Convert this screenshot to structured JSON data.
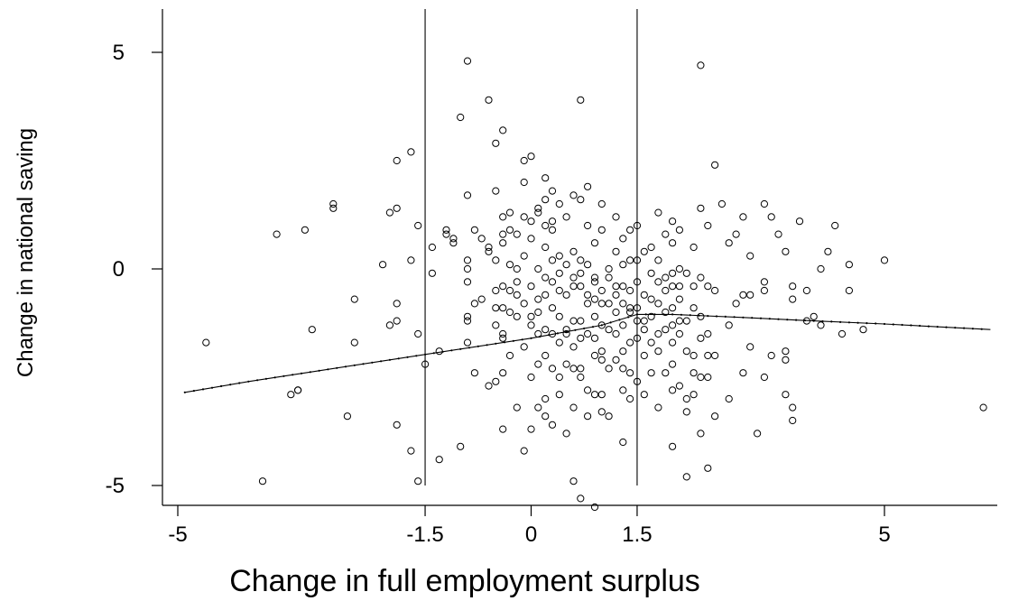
{
  "chart_data": {
    "type": "scatter",
    "title": "",
    "xlabel": "Change in full employment surplus",
    "ylabel": "Change in national saving",
    "xlim": [
      -5.1,
      6.6
    ],
    "ylim": [
      -5.3,
      6.0
    ],
    "x_ticks": [
      -5,
      -1.5,
      0,
      1.5,
      5
    ],
    "x_tick_labels": [
      "-5",
      "-1.5",
      "0",
      "1.5",
      "5"
    ],
    "y_ticks": [
      -5,
      0,
      5
    ],
    "y_tick_labels": [
      "-5",
      "0",
      "5"
    ],
    "grid": false,
    "legend": "none",
    "vertical_reference_lines": [
      -1.5,
      1.5
    ],
    "points": [
      [
        -4.6,
        -1.7
      ],
      [
        -3.6,
        0.8
      ],
      [
        -3.8,
        -4.9
      ],
      [
        -3.4,
        -2.9
      ],
      [
        -3.3,
        -2.8
      ],
      [
        -3.3,
        -2.8
      ],
      [
        -3.2,
        0.9
      ],
      [
        -3.1,
        -1.4
      ],
      [
        -2.8,
        1.5
      ],
      [
        -2.8,
        1.4
      ],
      [
        -2.6,
        -3.4
      ],
      [
        -2.5,
        -0.7
      ],
      [
        -2.5,
        -1.7
      ],
      [
        -2.1,
        0.1
      ],
      [
        -2.0,
        1.3
      ],
      [
        -2.0,
        -1.3
      ],
      [
        -1.9,
        2.5
      ],
      [
        -1.9,
        1.4
      ],
      [
        -1.9,
        -0.8
      ],
      [
        -1.9,
        -1.2
      ],
      [
        -1.9,
        -3.6
      ],
      [
        -1.7,
        2.7
      ],
      [
        -1.7,
        0.2
      ],
      [
        -1.7,
        -4.2
      ],
      [
        -1.6,
        -1.5
      ],
      [
        -1.6,
        1.0
      ],
      [
        -1.6,
        -4.9
      ],
      [
        -1.5,
        -2.2
      ],
      [
        -1.4,
        0.5
      ],
      [
        -1.4,
        -0.1
      ],
      [
        -1.3,
        -1.9
      ],
      [
        -1.3,
        -4.4
      ],
      [
        -1.2,
        0.8
      ],
      [
        -1.2,
        0.9
      ],
      [
        -1.1,
        0.6
      ],
      [
        -1.1,
        0.7
      ],
      [
        -1.0,
        3.5
      ],
      [
        -1.0,
        -4.1
      ],
      [
        -0.9,
        4.8
      ],
      [
        -0.9,
        1.7
      ],
      [
        -0.9,
        0.2
      ],
      [
        -0.9,
        0.0
      ],
      [
        -0.9,
        -0.3
      ],
      [
        -0.9,
        -1.1
      ],
      [
        -0.9,
        -1.2
      ],
      [
        -0.9,
        -1.7
      ],
      [
        -0.8,
        0.9
      ],
      [
        -0.8,
        -0.8
      ],
      [
        -0.8,
        -2.4
      ],
      [
        -0.7,
        0.7
      ],
      [
        -0.7,
        -0.7
      ],
      [
        -0.6,
        3.9
      ],
      [
        -0.6,
        0.5
      ],
      [
        -0.6,
        0.4
      ],
      [
        -0.6,
        -2.7
      ],
      [
        -0.5,
        2.9
      ],
      [
        -0.5,
        1.8
      ],
      [
        -0.5,
        0.2
      ],
      [
        -0.5,
        -0.5
      ],
      [
        -0.5,
        -0.9
      ],
      [
        -0.5,
        -2.6
      ],
      [
        -0.4,
        3.2
      ],
      [
        -0.4,
        1.2
      ],
      [
        -0.4,
        0.8
      ],
      [
        -0.4,
        0.6
      ],
      [
        -0.4,
        -0.4
      ],
      [
        -0.4,
        -1.5
      ],
      [
        -0.4,
        -1.6
      ],
      [
        -0.4,
        -2.4
      ],
      [
        -0.4,
        -3.7
      ],
      [
        -0.3,
        1.3
      ],
      [
        -0.3,
        0.1
      ],
      [
        -0.3,
        -0.5
      ],
      [
        -0.3,
        -1.0
      ],
      [
        -0.3,
        -2.0
      ],
      [
        -0.2,
        0.8
      ],
      [
        -0.2,
        -0.3
      ],
      [
        -0.2,
        -0.6
      ],
      [
        -0.2,
        -1.1
      ],
      [
        -0.2,
        -3.2
      ],
      [
        -0.1,
        2.5
      ],
      [
        -0.1,
        1.2
      ],
      [
        -0.1,
        0.3
      ],
      [
        -0.1,
        -0.8
      ],
      [
        -0.1,
        -1.8
      ],
      [
        -0.1,
        -4.2
      ],
      [
        0.0,
        2.6
      ],
      [
        0.0,
        1.1
      ],
      [
        0.0,
        0.7
      ],
      [
        0.0,
        -0.4
      ],
      [
        0.0,
        -1.3
      ],
      [
        0.0,
        -2.5
      ],
      [
        0.0,
        -3.7
      ],
      [
        0.1,
        1.4
      ],
      [
        0.1,
        1.3
      ],
      [
        0.1,
        0.0
      ],
      [
        0.1,
        -0.7
      ],
      [
        0.1,
        -1.0
      ],
      [
        0.1,
        -2.2
      ],
      [
        0.1,
        -3.2
      ],
      [
        0.2,
        2.1
      ],
      [
        0.2,
        1.6
      ],
      [
        0.2,
        1.0
      ],
      [
        0.2,
        0.5
      ],
      [
        0.2,
        -0.2
      ],
      [
        0.2,
        -0.6
      ],
      [
        0.2,
        -1.4
      ],
      [
        0.2,
        -2.0
      ],
      [
        0.2,
        -3.0
      ],
      [
        0.3,
        1.8
      ],
      [
        0.3,
        1.1
      ],
      [
        0.3,
        0.9
      ],
      [
        0.3,
        0.2
      ],
      [
        0.3,
        -0.3
      ],
      [
        0.3,
        -0.9
      ],
      [
        0.3,
        -1.5
      ],
      [
        0.3,
        -2.3
      ],
      [
        0.3,
        -3.6
      ],
      [
        0.4,
        1.5
      ],
      [
        0.4,
        0.3
      ],
      [
        0.4,
        -0.1
      ],
      [
        0.4,
        -0.5
      ],
      [
        0.4,
        -1.1
      ],
      [
        0.4,
        -1.7
      ],
      [
        0.4,
        -2.5
      ],
      [
        0.4,
        -2.9
      ],
      [
        0.5,
        1.2
      ],
      [
        0.5,
        0.1
      ],
      [
        0.5,
        -0.6
      ],
      [
        0.5,
        -1.4
      ],
      [
        0.5,
        -1.5
      ],
      [
        0.5,
        -2.2
      ],
      [
        0.5,
        -3.8
      ],
      [
        0.6,
        1.7
      ],
      [
        0.6,
        0.4
      ],
      [
        0.6,
        -0.2
      ],
      [
        0.6,
        -0.4
      ],
      [
        0.6,
        -1.2
      ],
      [
        0.6,
        -1.8
      ],
      [
        0.6,
        -2.3
      ],
      [
        0.6,
        -3.2
      ],
      [
        0.6,
        -4.9
      ],
      [
        0.7,
        3.9
      ],
      [
        0.7,
        1.6
      ],
      [
        0.7,
        0.2
      ],
      [
        0.7,
        -0.1
      ],
      [
        0.7,
        -0.4
      ],
      [
        0.7,
        -1.2
      ],
      [
        0.7,
        -1.6
      ],
      [
        0.7,
        -2.3
      ],
      [
        0.7,
        -2.5
      ],
      [
        0.7,
        -5.3
      ],
      [
        0.8,
        1.9
      ],
      [
        0.8,
        0.1
      ],
      [
        0.8,
        -0.6
      ],
      [
        0.8,
        -0.8
      ],
      [
        0.8,
        -1.5
      ],
      [
        0.8,
        -2.8
      ],
      [
        0.8,
        -3.4
      ],
      [
        0.9,
        0.6
      ],
      [
        0.9,
        -0.2
      ],
      [
        0.9,
        -0.3
      ],
      [
        0.9,
        -0.7
      ],
      [
        0.9,
        -1.1
      ],
      [
        0.9,
        -1.6
      ],
      [
        0.9,
        -2.0
      ],
      [
        0.9,
        -2.9
      ],
      [
        0.9,
        -5.5
      ],
      [
        1.0,
        1.5
      ],
      [
        1.0,
        0.9
      ],
      [
        1.0,
        -0.5
      ],
      [
        1.0,
        -0.8
      ],
      [
        1.0,
        -1.3
      ],
      [
        1.0,
        -1.9
      ],
      [
        1.0,
        -2.1
      ],
      [
        1.0,
        -3.3
      ],
      [
        1.1,
        0.0
      ],
      [
        1.1,
        -0.2
      ],
      [
        1.1,
        -0.8
      ],
      [
        1.1,
        -1.4
      ],
      [
        1.1,
        -2.3
      ],
      [
        1.1,
        -3.4
      ],
      [
        1.2,
        1.2
      ],
      [
        1.2,
        0.4
      ],
      [
        1.2,
        -0.4
      ],
      [
        1.2,
        -0.6
      ],
      [
        1.2,
        -1.0
      ],
      [
        1.2,
        -1.5
      ],
      [
        1.2,
        -2.1
      ],
      [
        1.3,
        0.7
      ],
      [
        1.3,
        0.1
      ],
      [
        1.3,
        -0.4
      ],
      [
        1.3,
        -0.8
      ],
      [
        1.3,
        -1.3
      ],
      [
        1.3,
        -1.9
      ],
      [
        1.3,
        -2.3
      ],
      [
        1.3,
        -2.8
      ],
      [
        1.3,
        -4.0
      ],
      [
        1.4,
        0.9
      ],
      [
        1.4,
        0.2
      ],
      [
        1.4,
        -0.5
      ],
      [
        1.4,
        -0.9
      ],
      [
        1.4,
        -1.0
      ],
      [
        1.4,
        -1.7
      ],
      [
        1.4,
        -2.4
      ],
      [
        1.4,
        -3.0
      ],
      [
        1.5,
        1.0
      ],
      [
        1.5,
        0.2
      ],
      [
        1.5,
        -0.3
      ],
      [
        1.5,
        -0.9
      ],
      [
        1.5,
        -1.2
      ],
      [
        1.5,
        -1.6
      ],
      [
        1.5,
        -2.6
      ],
      [
        1.6,
        0.4
      ],
      [
        1.6,
        -0.6
      ],
      [
        1.6,
        -1.2
      ],
      [
        1.6,
        -1.4
      ],
      [
        1.6,
        -2.0
      ],
      [
        1.6,
        -2.9
      ],
      [
        1.7,
        0.5
      ],
      [
        1.7,
        -0.1
      ],
      [
        1.7,
        -0.7
      ],
      [
        1.7,
        -1.1
      ],
      [
        1.7,
        -1.7
      ],
      [
        1.7,
        -2.4
      ],
      [
        1.8,
        1.3
      ],
      [
        1.8,
        0.2
      ],
      [
        1.8,
        -0.3
      ],
      [
        1.8,
        -0.8
      ],
      [
        1.8,
        -1.5
      ],
      [
        1.8,
        -1.9
      ],
      [
        1.8,
        -3.2
      ],
      [
        1.9,
        0.8
      ],
      [
        1.9,
        -0.2
      ],
      [
        1.9,
        -0.5
      ],
      [
        1.9,
        -1.0
      ],
      [
        1.9,
        -1.4
      ],
      [
        1.9,
        -2.4
      ],
      [
        2.0,
        1.1
      ],
      [
        2.0,
        0.6
      ],
      [
        2.0,
        -0.4
      ],
      [
        2.0,
        -0.9
      ],
      [
        2.0,
        -1.3
      ],
      [
        2.0,
        -1.7
      ],
      [
        2.0,
        -2.2
      ],
      [
        2.0,
        -2.8
      ],
      [
        2.0,
        -4.1
      ],
      [
        2.1,
        0.9
      ],
      [
        2.1,
        0.0
      ],
      [
        2.1,
        -0.4
      ],
      [
        2.1,
        -0.7
      ],
      [
        2.1,
        -1.2
      ],
      [
        2.1,
        -1.5
      ],
      [
        2.1,
        -2.7
      ],
      [
        2.2,
        -0.1
      ],
      [
        2.2,
        -1.2
      ],
      [
        2.2,
        -1.9
      ],
      [
        2.2,
        -3.0
      ],
      [
        2.2,
        -3.3
      ],
      [
        2.2,
        -4.8
      ],
      [
        2.3,
        0.5
      ],
      [
        2.3,
        -0.4
      ],
      [
        2.3,
        -0.9
      ],
      [
        2.3,
        -2.0
      ],
      [
        2.3,
        -2.4
      ],
      [
        2.3,
        -2.9
      ],
      [
        2.4,
        4.7
      ],
      [
        2.4,
        1.4
      ],
      [
        2.4,
        -0.2
      ],
      [
        2.4,
        -1.1
      ],
      [
        2.4,
        -1.6
      ],
      [
        2.4,
        -2.5
      ],
      [
        2.4,
        -3.8
      ],
      [
        2.5,
        1.0
      ],
      [
        2.5,
        -0.4
      ],
      [
        2.5,
        -1.5
      ],
      [
        2.5,
        -2.0
      ],
      [
        2.5,
        -2.5
      ],
      [
        2.5,
        -4.6
      ],
      [
        2.6,
        2.4
      ],
      [
        2.6,
        -0.5
      ],
      [
        2.6,
        -2.0
      ],
      [
        2.7,
        1.5
      ],
      [
        2.8,
        0.6
      ],
      [
        2.8,
        -1.3
      ],
      [
        2.8,
        -3.0
      ],
      [
        2.9,
        0.8
      ],
      [
        2.9,
        -0.8
      ],
      [
        3.0,
        1.2
      ],
      [
        3.0,
        -0.6
      ],
      [
        3.0,
        -2.4
      ],
      [
        3.1,
        0.3
      ],
      [
        3.1,
        -0.6
      ],
      [
        3.1,
        -1.8
      ],
      [
        3.2,
        -3.8
      ],
      [
        3.3,
        1.5
      ],
      [
        3.3,
        -0.5
      ],
      [
        3.3,
        -2.5
      ],
      [
        3.4,
        -2.0
      ],
      [
        3.4,
        1.2
      ],
      [
        3.5,
        0.8
      ],
      [
        3.6,
        0.4
      ],
      [
        3.6,
        -1.9
      ],
      [
        3.6,
        -2.1
      ],
      [
        3.6,
        -2.9
      ],
      [
        3.7,
        -0.7
      ],
      [
        3.7,
        -3.2
      ],
      [
        3.7,
        -3.5
      ],
      [
        3.8,
        1.1
      ],
      [
        3.9,
        -0.5
      ],
      [
        4.0,
        -1.1
      ],
      [
        4.1,
        0.0
      ],
      [
        4.1,
        -1.3
      ],
      [
        4.2,
        0.4
      ],
      [
        4.3,
        1.0
      ],
      [
        4.4,
        -1.5
      ],
      [
        4.5,
        0.1
      ],
      [
        4.5,
        -0.5
      ],
      [
        4.7,
        -1.4
      ],
      [
        5.0,
        0.2
      ],
      [
        6.4,
        -3.2
      ],
      [
        3.7,
        -0.4
      ],
      [
        3.3,
        -0.3
      ],
      [
        3.9,
        -1.2
      ],
      [
        2.6,
        -3.4
      ],
      [
        2.0,
        -0.1
      ],
      [
        1.0,
        -2.9
      ],
      [
        0.2,
        -3.4
      ],
      [
        -0.2,
        0.0
      ],
      [
        -0.3,
        0.9
      ],
      [
        -0.4,
        -0.9
      ],
      [
        -0.5,
        -1.3
      ],
      [
        -0.1,
        2.0
      ],
      [
        0.0,
        -1.1
      ],
      [
        0.1,
        -1.5
      ],
      [
        0.8,
        1.0
      ]
    ],
    "fit_line": {
      "x": [
        -4.9,
        -4.0,
        -3.0,
        -2.0,
        -1.0,
        0.0,
        0.5,
        1.0,
        1.5,
        2.0,
        3.0,
        4.0,
        5.0,
        6.5
      ],
      "y": [
        -2.85,
        -2.6,
        -2.35,
        -2.1,
        -1.85,
        -1.6,
        -1.45,
        -1.3,
        -1.05,
        -1.05,
        -1.12,
        -1.2,
        -1.27,
        -1.4
      ]
    }
  }
}
